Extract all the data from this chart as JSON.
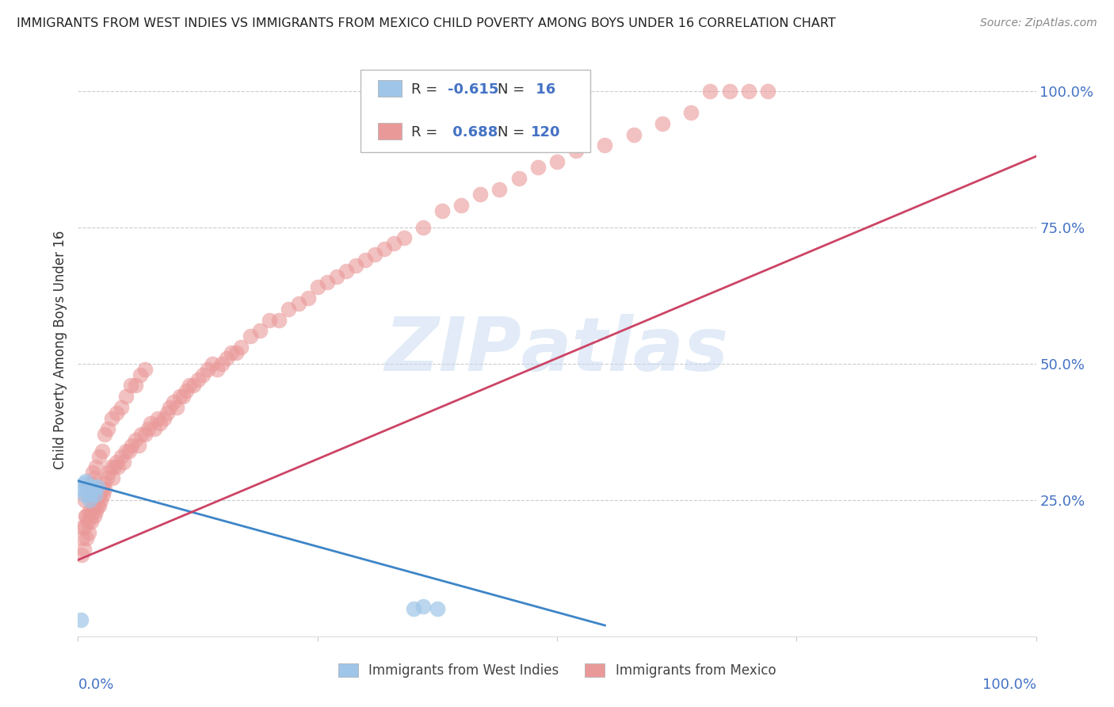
{
  "title": "IMMIGRANTS FROM WEST INDIES VS IMMIGRANTS FROM MEXICO CHILD POVERTY AMONG BOYS UNDER 16 CORRELATION CHART",
  "source": "Source: ZipAtlas.com",
  "ylabel": "Child Poverty Among Boys Under 16",
  "xlim": [
    0.0,
    1.0
  ],
  "ylim": [
    0.0,
    1.05
  ],
  "west_indies_R": -0.615,
  "west_indies_N": 16,
  "mexico_R": 0.688,
  "mexico_N": 120,
  "legend_label_wi": "Immigrants from West Indies",
  "legend_label_mx": "Immigrants from Mexico",
  "color_wi": "#9fc5e8",
  "color_mx": "#ea9999",
  "line_color_wi": "#3d85c8",
  "line_color_mx": "#cc4466",
  "watermark": "ZIPAtlas",
  "background_color": "#ffffff",
  "wi_x": [
    0.003,
    0.005,
    0.006,
    0.007,
    0.008,
    0.009,
    0.01,
    0.012,
    0.013,
    0.015,
    0.016,
    0.018,
    0.02,
    0.35,
    0.36,
    0.375
  ],
  "wi_y": [
    0.03,
    0.27,
    0.28,
    0.26,
    0.285,
    0.27,
    0.265,
    0.25,
    0.26,
    0.275,
    0.27,
    0.26,
    0.275,
    0.05,
    0.055,
    0.05
  ],
  "mx_x": [
    0.004,
    0.005,
    0.006,
    0.007,
    0.008,
    0.009,
    0.01,
    0.011,
    0.012,
    0.013,
    0.014,
    0.015,
    0.016,
    0.017,
    0.018,
    0.019,
    0.02,
    0.021,
    0.022,
    0.023,
    0.024,
    0.025,
    0.026,
    0.027,
    0.028,
    0.03,
    0.032,
    0.034,
    0.036,
    0.038,
    0.04,
    0.042,
    0.045,
    0.048,
    0.05,
    0.053,
    0.056,
    0.06,
    0.063,
    0.066,
    0.07,
    0.073,
    0.076,
    0.08,
    0.083,
    0.086,
    0.09,
    0.093,
    0.096,
    0.1,
    0.103,
    0.106,
    0.11,
    0.113,
    0.116,
    0.12,
    0.125,
    0.13,
    0.135,
    0.14,
    0.145,
    0.15,
    0.155,
    0.16,
    0.165,
    0.17,
    0.18,
    0.19,
    0.2,
    0.21,
    0.22,
    0.23,
    0.24,
    0.25,
    0.26,
    0.27,
    0.28,
    0.29,
    0.3,
    0.31,
    0.32,
    0.33,
    0.34,
    0.36,
    0.38,
    0.4,
    0.42,
    0.44,
    0.46,
    0.48,
    0.5,
    0.52,
    0.55,
    0.58,
    0.61,
    0.64,
    0.66,
    0.68,
    0.7,
    0.72,
    0.005,
    0.007,
    0.009,
    0.011,
    0.013,
    0.015,
    0.017,
    0.019,
    0.022,
    0.025,
    0.028,
    0.031,
    0.035,
    0.04,
    0.045,
    0.05,
    0.055,
    0.06,
    0.065,
    0.07
  ],
  "mx_y": [
    0.15,
    0.18,
    0.16,
    0.2,
    0.22,
    0.18,
    0.21,
    0.19,
    0.23,
    0.22,
    0.21,
    0.23,
    0.24,
    0.22,
    0.25,
    0.23,
    0.24,
    0.26,
    0.24,
    0.26,
    0.25,
    0.27,
    0.26,
    0.28,
    0.27,
    0.29,
    0.3,
    0.31,
    0.29,
    0.31,
    0.32,
    0.31,
    0.33,
    0.32,
    0.34,
    0.34,
    0.35,
    0.36,
    0.35,
    0.37,
    0.37,
    0.38,
    0.39,
    0.38,
    0.4,
    0.39,
    0.4,
    0.41,
    0.42,
    0.43,
    0.42,
    0.44,
    0.44,
    0.45,
    0.46,
    0.46,
    0.47,
    0.48,
    0.49,
    0.5,
    0.49,
    0.5,
    0.51,
    0.52,
    0.52,
    0.53,
    0.55,
    0.56,
    0.58,
    0.58,
    0.6,
    0.61,
    0.62,
    0.64,
    0.65,
    0.66,
    0.67,
    0.68,
    0.69,
    0.7,
    0.71,
    0.72,
    0.73,
    0.75,
    0.78,
    0.79,
    0.81,
    0.82,
    0.84,
    0.86,
    0.87,
    0.89,
    0.9,
    0.92,
    0.94,
    0.96,
    1.0,
    1.0,
    1.0,
    1.0,
    0.2,
    0.25,
    0.22,
    0.26,
    0.28,
    0.3,
    0.29,
    0.31,
    0.33,
    0.34,
    0.37,
    0.38,
    0.4,
    0.41,
    0.42,
    0.44,
    0.46,
    0.46,
    0.48,
    0.49
  ],
  "wi_line_x0": 0.0,
  "wi_line_x1": 0.55,
  "wi_line_y0": 0.285,
  "wi_line_y1": 0.02,
  "mx_line_x0": 0.0,
  "mx_line_x1": 1.0,
  "mx_line_y0": 0.14,
  "mx_line_y1": 0.88
}
